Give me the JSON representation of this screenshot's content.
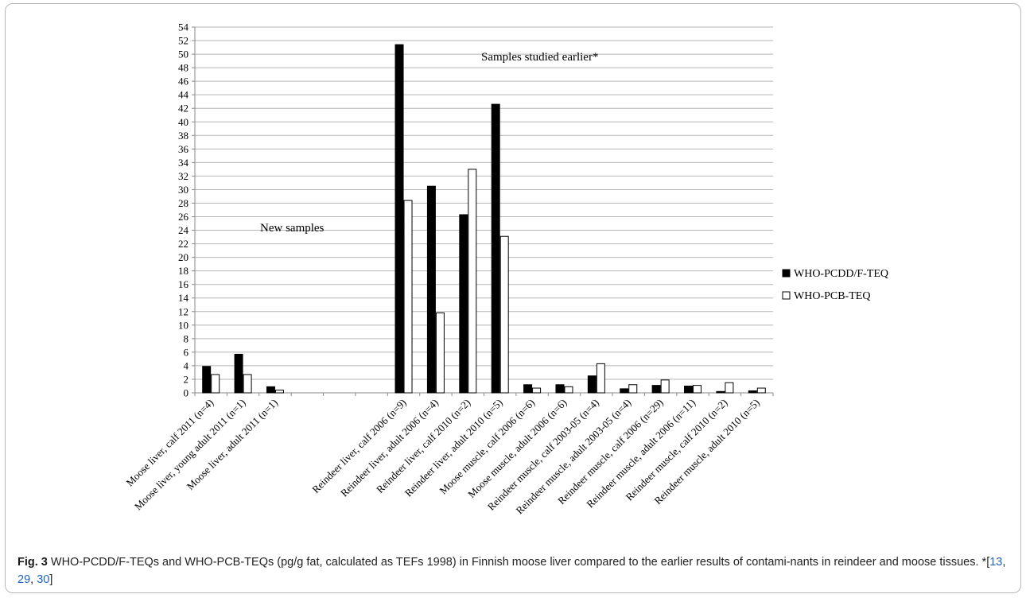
{
  "chart_data": {
    "type": "bar",
    "ylim": [
      0,
      54
    ],
    "yticks": [
      0,
      2,
      4,
      6,
      8,
      10,
      12,
      14,
      16,
      18,
      20,
      22,
      24,
      26,
      28,
      30,
      32,
      34,
      36,
      38,
      40,
      42,
      44,
      46,
      48,
      50,
      52,
      54
    ],
    "grid": true,
    "legend_position": "right",
    "categories": [
      "Moose liver, calf 2011 (n=4)",
      "Moose liver, young adult 2011 (n=1)",
      "Moose liver, adult 2011 (n=1)",
      "",
      "",
      "",
      "Reindeer liver, calf 2006 (n=9)",
      "Reindeer liver, adult 2006 (n=4)",
      "Reindeer liver, calf 2010 (n=2)",
      "Reindeer liver, adult 2010 (n=5)",
      "Moose muscle, calf 2006 (n=6)",
      "Moose muscle, adult 2006 (n=6)",
      "Reindeer muscle, calf 2003-05 (n=4)",
      "Reindeer muscle, adult 2003-05 (n=4)",
      "Reindeer muscle, calf 2006 (n=29)",
      "Reindeer muscle, adult 2006 (n=11)",
      "Reindeer muscle, calf 2010 (n=2)",
      "Reindeer muscle, adult 2010 (n=5)"
    ],
    "series": [
      {
        "name": "WHO-PCDD/F-TEQ",
        "color": "#000000",
        "values": [
          3.9,
          5.7,
          0.9,
          null,
          null,
          null,
          51.4,
          30.5,
          26.3,
          42.6,
          1.2,
          1.2,
          2.5,
          0.6,
          1.1,
          1.0,
          0.2,
          0.3
        ]
      },
      {
        "name": "WHO-PCB-TEQ",
        "color": "#ffffff",
        "values": [
          2.7,
          2.7,
          0.4,
          null,
          null,
          null,
          28.4,
          11.8,
          33.0,
          23.1,
          0.7,
          0.9,
          4.3,
          1.2,
          1.9,
          1.1,
          1.5,
          0.7
        ]
      }
    ],
    "annotations": [
      {
        "text": "New samples"
      },
      {
        "text": "Samples studied earlier*"
      }
    ]
  },
  "caption": {
    "label": "Fig. 3",
    "text": " WHO-PCDD/F-TEQs and WHO-PCB-TEQs (pg/g fat, calculated as TEFs 1998) in Finnish moose liver compared to the earlier results of contami-nants in reindeer and moose tissues. *",
    "ref_prefix": "[",
    "refs": [
      "13",
      "29",
      "30"
    ],
    "ref_suffix": "]"
  }
}
